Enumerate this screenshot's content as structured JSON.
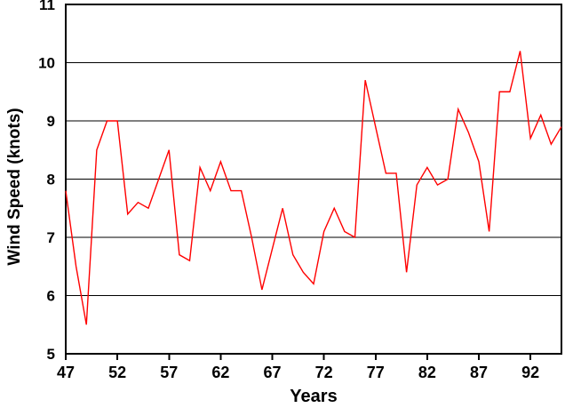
{
  "page": {
    "background_color": "#ffffff"
  },
  "chart_data": {
    "type": "line",
    "title": "",
    "xlabel": "Years",
    "ylabel": "Wind Speed (knots)",
    "x": [
      47,
      48,
      49,
      50,
      51,
      52,
      53,
      54,
      55,
      56,
      57,
      58,
      59,
      60,
      61,
      62,
      63,
      64,
      65,
      66,
      67,
      68,
      69,
      70,
      71,
      72,
      73,
      74,
      75,
      76,
      77,
      78,
      79,
      80,
      81,
      82,
      83,
      84,
      85,
      86,
      87,
      88,
      89,
      90,
      91,
      92,
      93,
      94,
      95
    ],
    "values": [
      7.8,
      6.5,
      5.5,
      8.5,
      9.0,
      9.0,
      7.4,
      7.6,
      7.5,
      8.0,
      8.5,
      6.7,
      6.6,
      8.2,
      7.8,
      8.3,
      7.8,
      7.8,
      7.0,
      6.1,
      6.8,
      7.5,
      6.7,
      6.4,
      6.2,
      7.1,
      7.5,
      7.1,
      7.0,
      9.7,
      8.9,
      8.1,
      8.1,
      6.4,
      7.9,
      8.2,
      7.9,
      8.0,
      9.2,
      8.8,
      8.3,
      7.1,
      9.5,
      9.5,
      10.2,
      8.7,
      9.1,
      8.6,
      8.9
    ],
    "xlim": [
      47,
      95
    ],
    "ylim": [
      5,
      11
    ],
    "xticks": [
      47,
      52,
      57,
      62,
      67,
      72,
      77,
      82,
      87,
      92
    ],
    "yticks": [
      5,
      6,
      7,
      8,
      9,
      10,
      11
    ],
    "grid": "horizontal",
    "legend": "none",
    "line_color": "#ff0000",
    "axis_color": "#000000"
  }
}
